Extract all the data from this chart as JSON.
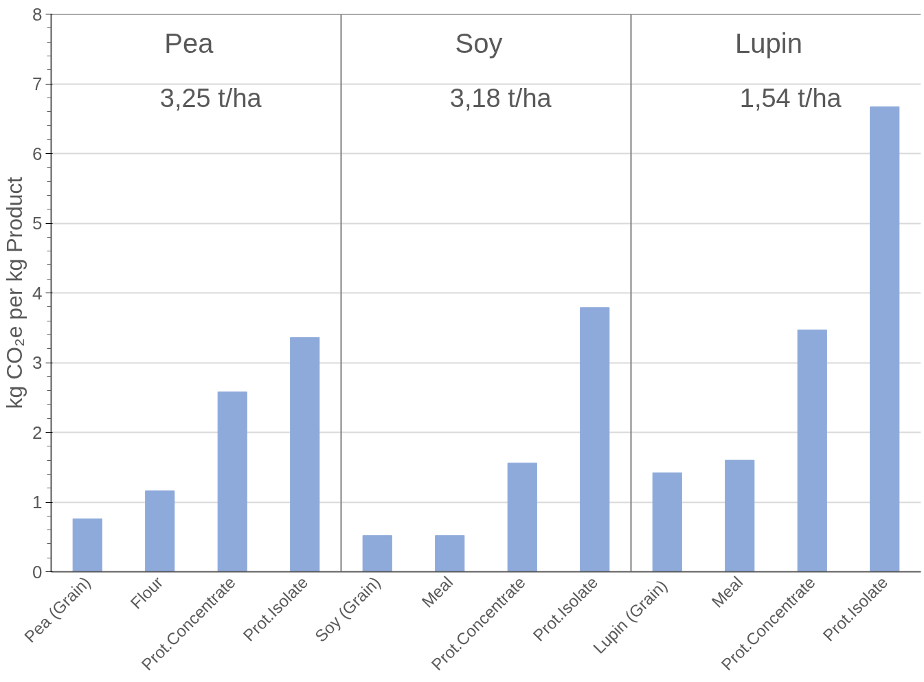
{
  "chart_data": {
    "type": "bar",
    "ylabel": "kg CO₂e per kg Product",
    "categories": [
      "Pea (Grain)",
      "Flour",
      "Prot.Concentrate",
      "Prot.Isolate",
      "Soy (Grain)",
      "Meal",
      "Prot.Concentrate",
      "Prot.Isolate",
      "Lupin  (Grain)",
      "Meal",
      "Prot.Concentrate",
      "Prot.Isolate"
    ],
    "values": [
      0.76,
      1.16,
      2.58,
      3.36,
      0.52,
      0.52,
      1.56,
      3.79,
      1.42,
      1.6,
      3.47,
      6.67
    ],
    "color": "#8eaadb",
    "ylim": [
      0,
      8
    ],
    "yticks": [
      0,
      1,
      2,
      3,
      4,
      5,
      6,
      7,
      8
    ],
    "grid": "y",
    "annotations": [
      "Pea",
      "3,25 t/ha",
      "Soy",
      "3,18 t/ha",
      "Lupin",
      "1,54 t/ha"
    ]
  }
}
